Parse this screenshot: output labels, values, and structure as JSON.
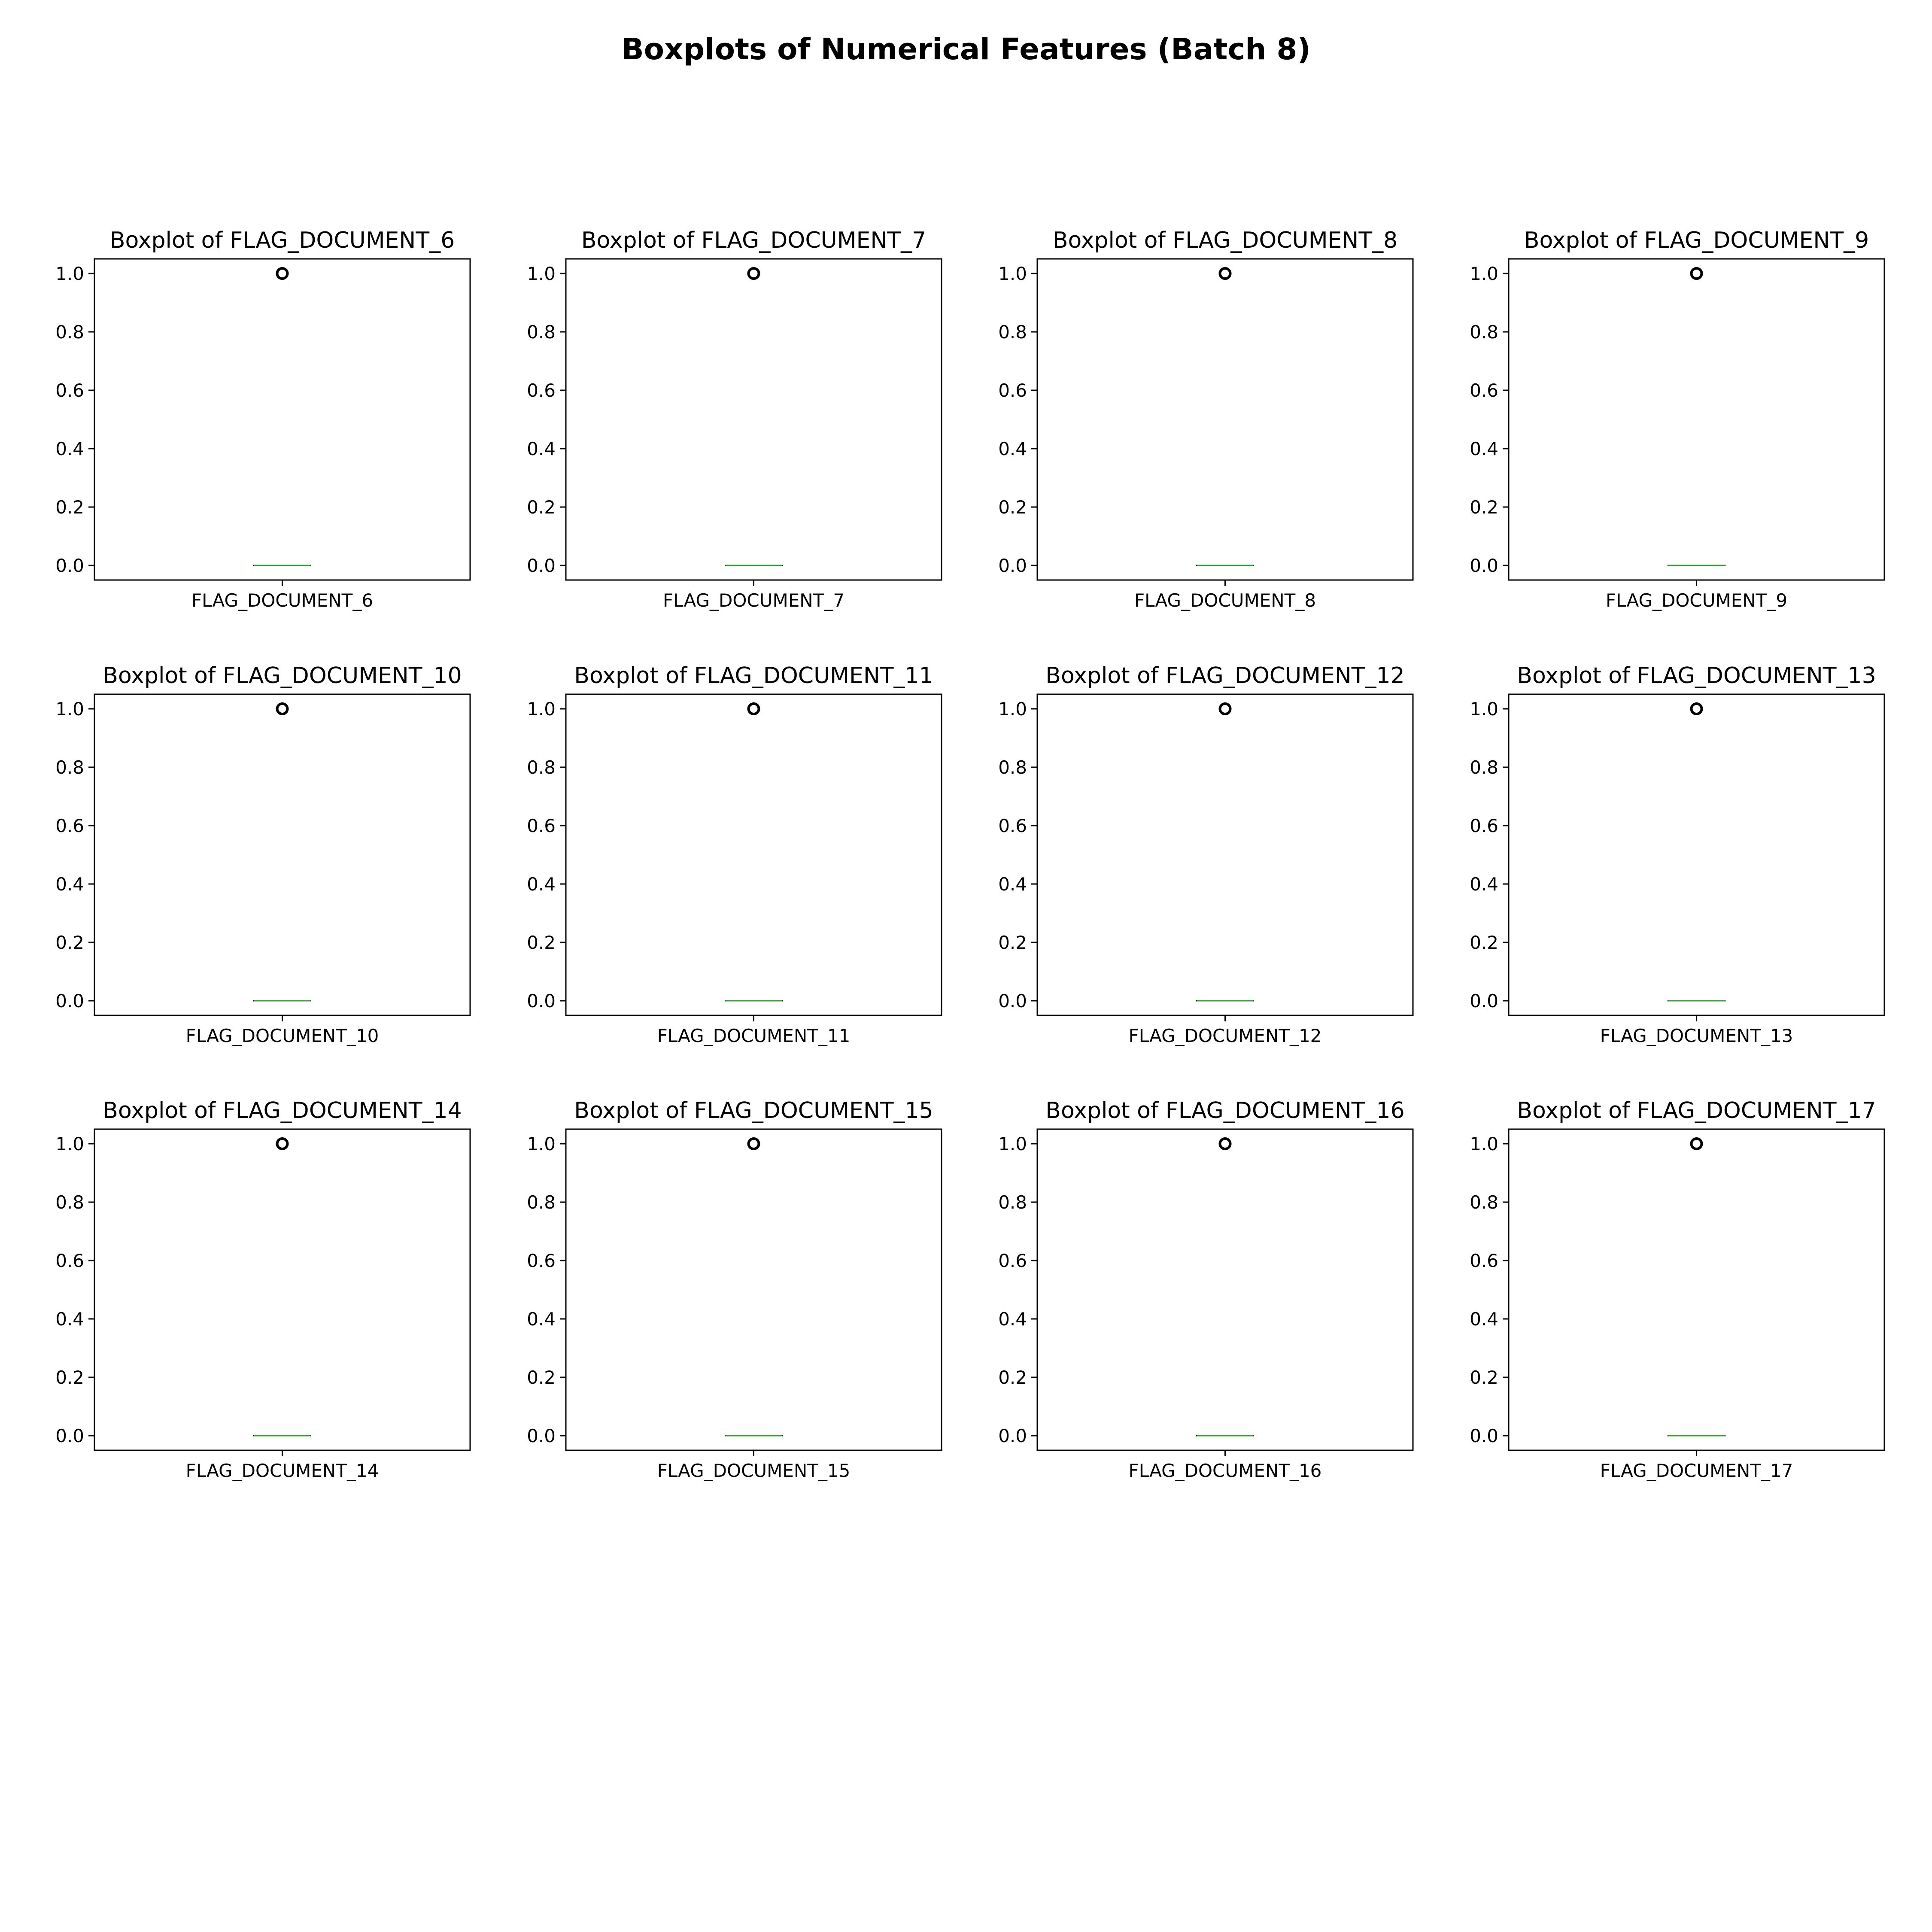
{
  "figure": {
    "title": "Boxplots of Numerical Features (Batch 8)"
  },
  "colors": {
    "median": "#2ca02c",
    "outlier": "#000000",
    "frame": "#000000",
    "background": "#ffffff"
  },
  "chart_data": [
    {
      "type": "box",
      "title": "Boxplot of FLAG_DOCUMENT_6",
      "xlabel": "",
      "ylabel": "",
      "categories": [
        "FLAG_DOCUMENT_6"
      ],
      "yticks": [
        0.0,
        0.2,
        0.4,
        0.6,
        0.8,
        1.0
      ],
      "ylim": [
        -0.05,
        1.05
      ],
      "box": {
        "q1": 0.0,
        "median": 0.0,
        "q3": 0.0,
        "whisker_low": 0.0,
        "whisker_high": 0.0
      },
      "outliers": [
        1.0
      ],
      "grid": false
    },
    {
      "type": "box",
      "title": "Boxplot of FLAG_DOCUMENT_7",
      "xlabel": "",
      "ylabel": "",
      "categories": [
        "FLAG_DOCUMENT_7"
      ],
      "yticks": [
        0.0,
        0.2,
        0.4,
        0.6,
        0.8,
        1.0
      ],
      "ylim": [
        -0.05,
        1.05
      ],
      "box": {
        "q1": 0.0,
        "median": 0.0,
        "q3": 0.0,
        "whisker_low": 0.0,
        "whisker_high": 0.0
      },
      "outliers": [
        1.0
      ],
      "grid": false
    },
    {
      "type": "box",
      "title": "Boxplot of FLAG_DOCUMENT_8",
      "xlabel": "",
      "ylabel": "",
      "categories": [
        "FLAG_DOCUMENT_8"
      ],
      "yticks": [
        0.0,
        0.2,
        0.4,
        0.6,
        0.8,
        1.0
      ],
      "ylim": [
        -0.05,
        1.05
      ],
      "box": {
        "q1": 0.0,
        "median": 0.0,
        "q3": 0.0,
        "whisker_low": 0.0,
        "whisker_high": 0.0
      },
      "outliers": [
        1.0
      ],
      "grid": false
    },
    {
      "type": "box",
      "title": "Boxplot of FLAG_DOCUMENT_9",
      "xlabel": "",
      "ylabel": "",
      "categories": [
        "FLAG_DOCUMENT_9"
      ],
      "yticks": [
        0.0,
        0.2,
        0.4,
        0.6,
        0.8,
        1.0
      ],
      "ylim": [
        -0.05,
        1.05
      ],
      "box": {
        "q1": 0.0,
        "median": 0.0,
        "q3": 0.0,
        "whisker_low": 0.0,
        "whisker_high": 0.0
      },
      "outliers": [
        1.0
      ],
      "grid": false
    },
    {
      "type": "box",
      "title": "Boxplot of FLAG_DOCUMENT_10",
      "xlabel": "",
      "ylabel": "",
      "categories": [
        "FLAG_DOCUMENT_10"
      ],
      "yticks": [
        0.0,
        0.2,
        0.4,
        0.6,
        0.8,
        1.0
      ],
      "ylim": [
        -0.05,
        1.05
      ],
      "box": {
        "q1": 0.0,
        "median": 0.0,
        "q3": 0.0,
        "whisker_low": 0.0,
        "whisker_high": 0.0
      },
      "outliers": [
        1.0
      ],
      "grid": false
    },
    {
      "type": "box",
      "title": "Boxplot of FLAG_DOCUMENT_11",
      "xlabel": "",
      "ylabel": "",
      "categories": [
        "FLAG_DOCUMENT_11"
      ],
      "yticks": [
        0.0,
        0.2,
        0.4,
        0.6,
        0.8,
        1.0
      ],
      "ylim": [
        -0.05,
        1.05
      ],
      "box": {
        "q1": 0.0,
        "median": 0.0,
        "q3": 0.0,
        "whisker_low": 0.0,
        "whisker_high": 0.0
      },
      "outliers": [
        1.0
      ],
      "grid": false
    },
    {
      "type": "box",
      "title": "Boxplot of FLAG_DOCUMENT_12",
      "xlabel": "",
      "ylabel": "",
      "categories": [
        "FLAG_DOCUMENT_12"
      ],
      "yticks": [
        0.0,
        0.2,
        0.4,
        0.6,
        0.8,
        1.0
      ],
      "ylim": [
        -0.05,
        1.05
      ],
      "box": {
        "q1": 0.0,
        "median": 0.0,
        "q3": 0.0,
        "whisker_low": 0.0,
        "whisker_high": 0.0
      },
      "outliers": [
        1.0
      ],
      "grid": false
    },
    {
      "type": "box",
      "title": "Boxplot of FLAG_DOCUMENT_13",
      "xlabel": "",
      "ylabel": "",
      "categories": [
        "FLAG_DOCUMENT_13"
      ],
      "yticks": [
        0.0,
        0.2,
        0.4,
        0.6,
        0.8,
        1.0
      ],
      "ylim": [
        -0.05,
        1.05
      ],
      "box": {
        "q1": 0.0,
        "median": 0.0,
        "q3": 0.0,
        "whisker_low": 0.0,
        "whisker_high": 0.0
      },
      "outliers": [
        1.0
      ],
      "grid": false
    },
    {
      "type": "box",
      "title": "Boxplot of FLAG_DOCUMENT_14",
      "xlabel": "",
      "ylabel": "",
      "categories": [
        "FLAG_DOCUMENT_14"
      ],
      "yticks": [
        0.0,
        0.2,
        0.4,
        0.6,
        0.8,
        1.0
      ],
      "ylim": [
        -0.05,
        1.05
      ],
      "box": {
        "q1": 0.0,
        "median": 0.0,
        "q3": 0.0,
        "whisker_low": 0.0,
        "whisker_high": 0.0
      },
      "outliers": [
        1.0
      ],
      "grid": false
    },
    {
      "type": "box",
      "title": "Boxplot of FLAG_DOCUMENT_15",
      "xlabel": "",
      "ylabel": "",
      "categories": [
        "FLAG_DOCUMENT_15"
      ],
      "yticks": [
        0.0,
        0.2,
        0.4,
        0.6,
        0.8,
        1.0
      ],
      "ylim": [
        -0.05,
        1.05
      ],
      "box": {
        "q1": 0.0,
        "median": 0.0,
        "q3": 0.0,
        "whisker_low": 0.0,
        "whisker_high": 0.0
      },
      "outliers": [
        1.0
      ],
      "grid": false
    },
    {
      "type": "box",
      "title": "Boxplot of FLAG_DOCUMENT_16",
      "xlabel": "",
      "ylabel": "",
      "categories": [
        "FLAG_DOCUMENT_16"
      ],
      "yticks": [
        0.0,
        0.2,
        0.4,
        0.6,
        0.8,
        1.0
      ],
      "ylim": [
        -0.05,
        1.05
      ],
      "box": {
        "q1": 0.0,
        "median": 0.0,
        "q3": 0.0,
        "whisker_low": 0.0,
        "whisker_high": 0.0
      },
      "outliers": [
        1.0
      ],
      "grid": false
    },
    {
      "type": "box",
      "title": "Boxplot of FLAG_DOCUMENT_17",
      "xlabel": "",
      "ylabel": "",
      "categories": [
        "FLAG_DOCUMENT_17"
      ],
      "yticks": [
        0.0,
        0.2,
        0.4,
        0.6,
        0.8,
        1.0
      ],
      "ylim": [
        -0.05,
        1.05
      ],
      "box": {
        "q1": 0.0,
        "median": 0.0,
        "q3": 0.0,
        "whisker_low": 0.0,
        "whisker_high": 0.0
      },
      "outliers": [
        1.0
      ],
      "grid": false
    }
  ]
}
